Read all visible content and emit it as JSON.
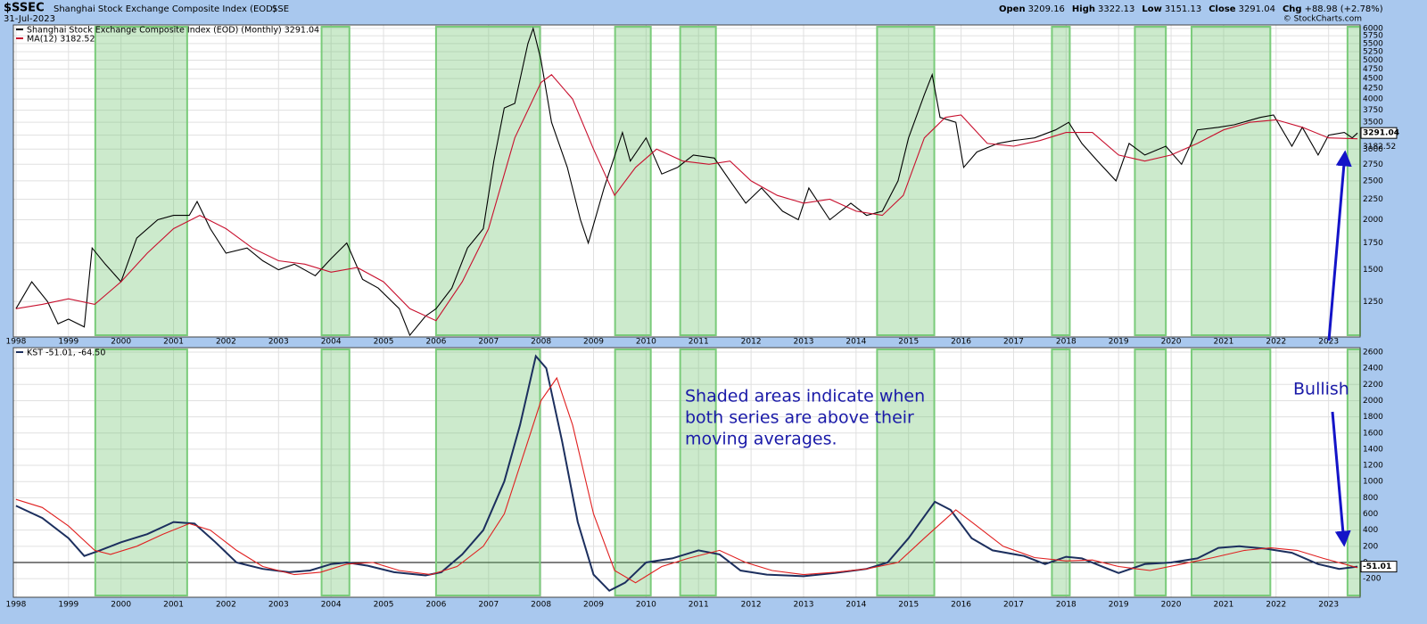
{
  "header": {
    "symbol": "$SSEC",
    "name": "Shanghai Stock Exchange Composite Index (EOD)",
    "exchange": "SSE",
    "date": "31-Jul-2023",
    "quote": [
      {
        "label": "Open",
        "value": "3209.16"
      },
      {
        "label": "High",
        "value": "3322.13"
      },
      {
        "label": "Low",
        "value": "3151.13"
      },
      {
        "label": "Close",
        "value": "3291.04"
      },
      {
        "label": "Chg",
        "value": "+88.98 (+2.78%)"
      }
    ],
    "copyright": "© StockCharts.com"
  },
  "chart_data": [
    {
      "type": "line",
      "log_scale": true,
      "grid": true,
      "xlim": [
        1997.95,
        2023.6
      ],
      "xticks": [
        1998,
        1999,
        2000,
        2001,
        2002,
        2003,
        2004,
        2005,
        2006,
        2007,
        2008,
        2009,
        2010,
        2011,
        2012,
        2013,
        2014,
        2015,
        2016,
        2017,
        2018,
        2019,
        2020,
        2021,
        2022,
        2023
      ],
      "ylim": [
        1020,
        6120
      ],
      "yticks": [
        1250,
        1500,
        1750,
        2000,
        2250,
        2500,
        2750,
        3000,
        3250,
        3500,
        3750,
        4000,
        4250,
        4500,
        4750,
        5000,
        5250,
        5500,
        5750,
        6000
      ],
      "shaded": [
        [
          1999.51,
          2001.26
        ],
        [
          2003.82,
          2004.35
        ],
        [
          2006.0,
          2007.98
        ],
        [
          2009.41,
          2010.09
        ],
        [
          2010.65,
          2011.33
        ],
        [
          2014.4,
          2015.49
        ],
        [
          2017.73,
          2018.07
        ],
        [
          2019.31,
          2019.9
        ],
        [
          2020.39,
          2021.89
        ],
        [
          2023.36,
          2023.6
        ]
      ],
      "series": [
        {
          "name": "Shanghai Stock Exchange Composite Index (EOD) (Monthly) 3291.04",
          "color": "#000000",
          "x": [
            1998.0,
            1998.3,
            1998.6,
            1998.8,
            1999.0,
            1999.3,
            1999.45,
            1999.7,
            2000.0,
            2000.3,
            2000.7,
            2001.0,
            2001.3,
            2001.45,
            2001.7,
            2002.0,
            2002.4,
            2002.7,
            2003.0,
            2003.3,
            2003.7,
            2004.0,
            2004.3,
            2004.6,
            2004.9,
            2005.3,
            2005.5,
            2005.8,
            2006.0,
            2006.3,
            2006.6,
            2006.9,
            2007.1,
            2007.3,
            2007.5,
            2007.75,
            2007.85,
            2008.0,
            2008.2,
            2008.5,
            2008.75,
            2008.9,
            2009.2,
            2009.55,
            2009.7,
            2010.0,
            2010.3,
            2010.6,
            2010.9,
            2011.3,
            2011.6,
            2011.9,
            2012.2,
            2012.6,
            2012.9,
            2013.1,
            2013.5,
            2013.9,
            2014.2,
            2014.5,
            2014.8,
            2015.0,
            2015.3,
            2015.45,
            2015.6,
            2015.9,
            2016.05,
            2016.3,
            2016.7,
            2017.0,
            2017.4,
            2017.8,
            2018.05,
            2018.3,
            2018.6,
            2018.95,
            2019.2,
            2019.5,
            2019.9,
            2020.2,
            2020.5,
            2020.9,
            2021.2,
            2021.7,
            2021.95,
            2022.3,
            2022.5,
            2022.8,
            2023.0,
            2023.3,
            2023.45,
            2023.55
          ],
          "values": [
            1200,
            1400,
            1250,
            1100,
            1130,
            1080,
            1700,
            1550,
            1400,
            1800,
            2000,
            2050,
            2050,
            2220,
            1900,
            1650,
            1700,
            1580,
            1500,
            1550,
            1450,
            1600,
            1750,
            1420,
            1350,
            1200,
            1030,
            1150,
            1200,
            1350,
            1700,
            1900,
            2800,
            3800,
            3900,
            5500,
            6000,
            5000,
            3500,
            2700,
            2000,
            1750,
            2400,
            3300,
            2800,
            3200,
            2600,
            2700,
            2900,
            2850,
            2500,
            2200,
            2400,
            2100,
            2000,
            2400,
            2000,
            2200,
            2050,
            2100,
            2500,
            3200,
            4100,
            4600,
            3600,
            3500,
            2700,
            2950,
            3100,
            3150,
            3200,
            3350,
            3500,
            3100,
            2800,
            2500,
            3100,
            2900,
            3050,
            2750,
            3350,
            3400,
            3450,
            3600,
            3650,
            3050,
            3400,
            2900,
            3250,
            3300,
            3200,
            3291.04
          ]
        },
        {
          "name": "MA(12) 3182.52",
          "color": "#c8102e",
          "x": [
            1998.0,
            1998.5,
            1999.0,
            1999.5,
            2000.0,
            2000.5,
            2001.0,
            2001.5,
            2002.0,
            2002.5,
            2003.0,
            2003.5,
            2004.0,
            2004.5,
            2005.0,
            2005.5,
            2006.0,
            2006.5,
            2007.0,
            2007.5,
            2008.0,
            2008.2,
            2008.6,
            2009.0,
            2009.4,
            2009.8,
            2010.2,
            2010.7,
            2011.2,
            2011.6,
            2012.0,
            2012.5,
            2013.0,
            2013.5,
            2014.0,
            2014.5,
            2014.9,
            2015.3,
            2015.7,
            2016.0,
            2016.5,
            2017.0,
            2017.5,
            2018.0,
            2018.5,
            2019.0,
            2019.5,
            2020.0,
            2020.5,
            2021.0,
            2021.5,
            2022.0,
            2022.5,
            2023.0,
            2023.55
          ],
          "values": [
            1200,
            1230,
            1270,
            1230,
            1400,
            1650,
            1900,
            2050,
            1900,
            1700,
            1580,
            1550,
            1480,
            1520,
            1400,
            1200,
            1120,
            1400,
            1900,
            3200,
            4400,
            4600,
            4000,
            3000,
            2300,
            2700,
            3000,
            2800,
            2750,
            2800,
            2500,
            2300,
            2200,
            2250,
            2100,
            2050,
            2300,
            3200,
            3600,
            3650,
            3100,
            3050,
            3150,
            3300,
            3300,
            2900,
            2800,
            2900,
            3100,
            3350,
            3500,
            3550,
            3400,
            3200,
            3182.52
          ]
        }
      ]
    },
    {
      "type": "line",
      "log_scale": false,
      "grid": true,
      "xlim": [
        1997.95,
        2023.6
      ],
      "xticks": [
        1998,
        1999,
        2000,
        2001,
        2002,
        2003,
        2004,
        2005,
        2006,
        2007,
        2008,
        2009,
        2010,
        2011,
        2012,
        2013,
        2014,
        2015,
        2016,
        2017,
        2018,
        2019,
        2020,
        2021,
        2022,
        2023
      ],
      "ylim": [
        -430,
        2655
      ],
      "yticks": [
        -200,
        0,
        200,
        400,
        600,
        800,
        1000,
        1200,
        1400,
        1600,
        1800,
        2000,
        2200,
        2400,
        2600
      ],
      "annotation": [
        "Shaded areas indicate when",
        "both series are above their",
        "moving averages."
      ],
      "signal": "Bullish",
      "series": [
        {
          "name": "KST -51.01, -64.50",
          "color": "#1c2f5e",
          "x": [
            1998.0,
            1998.5,
            1999.0,
            1999.3,
            1999.6,
            2000.0,
            2000.5,
            2001.0,
            2001.4,
            2001.8,
            2002.2,
            2002.7,
            2003.2,
            2003.6,
            2004.0,
            2004.3,
            2004.7,
            2005.2,
            2005.8,
            2006.1,
            2006.5,
            2006.9,
            2007.3,
            2007.6,
            2007.9,
            2008.1,
            2008.4,
            2008.7,
            2009.0,
            2009.3,
            2009.6,
            2010.0,
            2010.5,
            2011.0,
            2011.4,
            2011.8,
            2012.3,
            2013.0,
            2013.6,
            2014.2,
            2014.6,
            2015.0,
            2015.5,
            2015.8,
            2016.2,
            2016.6,
            2017.2,
            2017.6,
            2018.0,
            2018.3,
            2018.8,
            2019.0,
            2019.5,
            2020.0,
            2020.5,
            2020.9,
            2021.3,
            2021.8,
            2022.3,
            2022.8,
            2023.2,
            2023.55
          ],
          "values": [
            700,
            550,
            300,
            80,
            150,
            250,
            350,
            500,
            480,
            250,
            0,
            -80,
            -120,
            -100,
            -20,
            0,
            -40,
            -120,
            -160,
            -120,
            100,
            400,
            1000,
            1700,
            2550,
            2400,
            1500,
            500,
            -150,
            -350,
            -250,
            0,
            50,
            150,
            100,
            -100,
            -150,
            -170,
            -130,
            -80,
            0,
            300,
            750,
            650,
            300,
            150,
            80,
            -20,
            70,
            50,
            -80,
            -130,
            -20,
            0,
            50,
            180,
            200,
            170,
            120,
            -20,
            -80,
            -51.01
          ]
        },
        {
          "color": "#e02020",
          "x": [
            1998.0,
            1998.5,
            1999.0,
            1999.5,
            1999.8,
            2000.3,
            2000.8,
            2001.3,
            2001.7,
            2002.2,
            2002.7,
            2003.3,
            2003.8,
            2004.3,
            2004.8,
            2005.3,
            2005.9,
            2006.4,
            2006.9,
            2007.3,
            2007.7,
            2008.0,
            2008.3,
            2008.6,
            2009.0,
            2009.4,
            2009.8,
            2010.3,
            2010.8,
            2011.4,
            2011.9,
            2012.4,
            2013.0,
            2013.6,
            2014.2,
            2014.8,
            2015.3,
            2015.9,
            2016.3,
            2016.8,
            2017.4,
            2018.0,
            2018.5,
            2019.0,
            2019.6,
            2020.2,
            2020.8,
            2021.4,
            2021.9,
            2022.4,
            2022.9,
            2023.55
          ],
          "values": [
            780,
            680,
            450,
            150,
            100,
            200,
            350,
            480,
            400,
            150,
            -50,
            -150,
            -120,
            -20,
            0,
            -100,
            -150,
            -50,
            200,
            600,
            1400,
            2000,
            2280,
            1700,
            600,
            -100,
            -250,
            -50,
            50,
            150,
            0,
            -100,
            -150,
            -120,
            -80,
            0,
            300,
            650,
            450,
            200,
            60,
            20,
            30,
            -50,
            -100,
            -20,
            60,
            150,
            180,
            150,
            50,
            -64.5
          ]
        }
      ]
    }
  ]
}
